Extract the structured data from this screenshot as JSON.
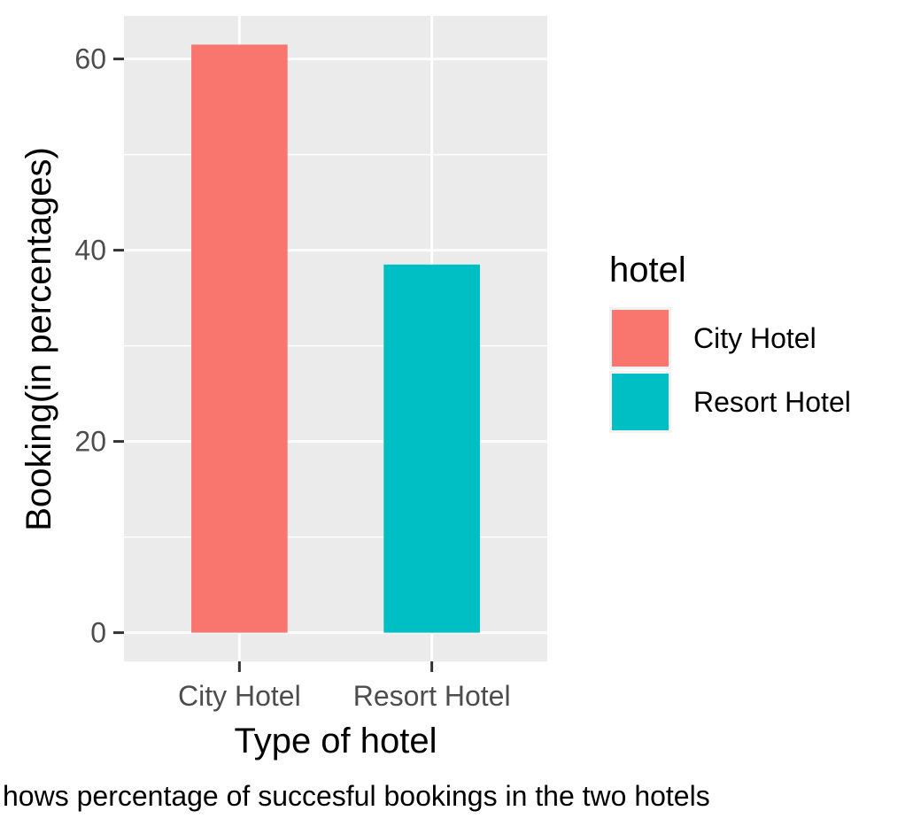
{
  "chart_data": {
    "type": "bar",
    "categories": [
      "City Hotel",
      "Resort Hotel"
    ],
    "values": [
      61.5,
      38.5
    ],
    "xlabel": "Type of hotel",
    "ylabel": "Booking(in percentages)",
    "ylim": [
      -3,
      64.5
    ],
    "yticks": [
      0,
      20,
      40,
      60
    ],
    "grid": true,
    "legend": {
      "title": "hotel",
      "placement": "right",
      "entries": [
        {
          "label": "City Hotel",
          "color": "#F8766D"
        },
        {
          "label": "Resort Hotel",
          "color": "#00BFC4"
        }
      ]
    },
    "colors": [
      "#F8766D",
      "#00BFC4"
    ],
    "caption": "hows percentage of succesful bookings in the two hotels"
  },
  "colors": {
    "panel_background": "#EBEBEB",
    "gridline": "#FFFFFF",
    "tick_text": "#4D4D4D"
  }
}
